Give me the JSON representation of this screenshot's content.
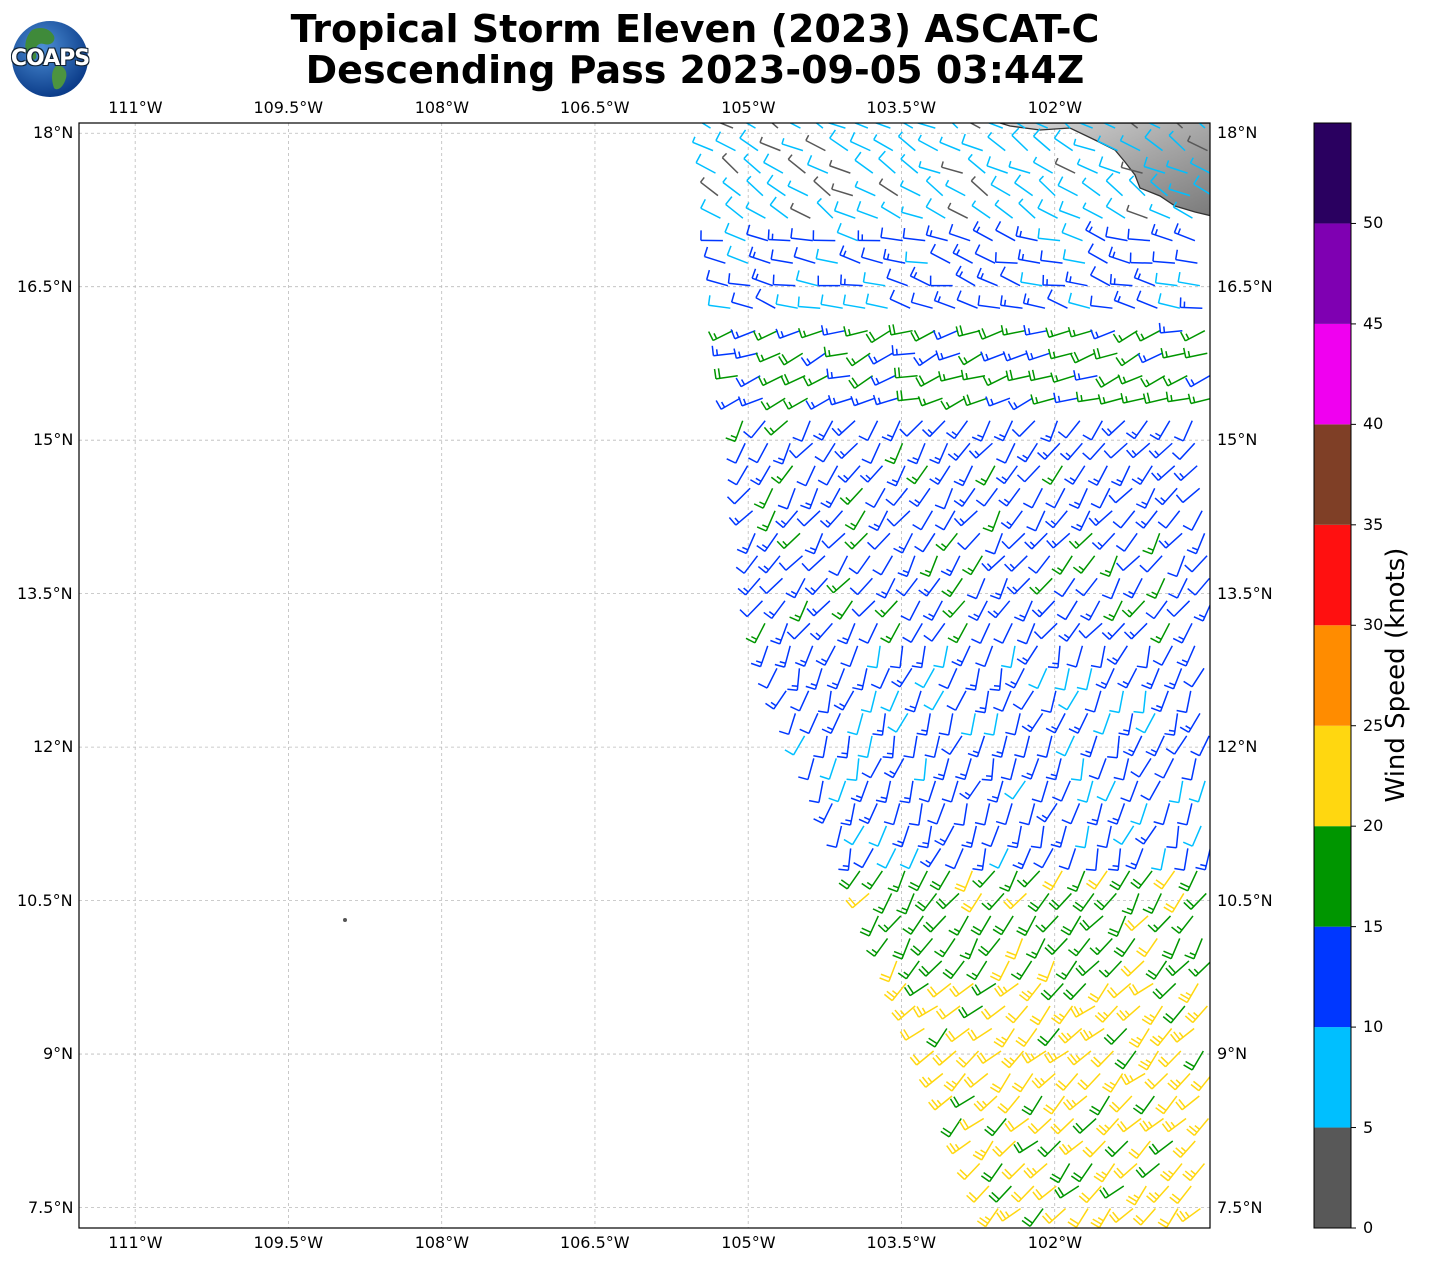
{
  "title": {
    "line1": "Tropical Storm Eleven (2023) ASCAT-C",
    "line2": "Descending Pass 2023-09-05 03:44Z"
  },
  "logo": {
    "text": "COAPS",
    "icon": "globe-icon"
  },
  "map": {
    "lon_range": [
      -111.55,
      -100.48
    ],
    "lat_range": [
      7.3,
      18.1
    ],
    "lon_ticks": [
      {
        "value": -111,
        "label": "111°W"
      },
      {
        "value": -109.5,
        "label": "109.5°W"
      },
      {
        "value": -108,
        "label": "108°W"
      },
      {
        "value": -106.5,
        "label": "106.5°W"
      },
      {
        "value": -105,
        "label": "105°W"
      },
      {
        "value": -103.5,
        "label": "103.5°W"
      },
      {
        "value": -102,
        "label": "102°W"
      }
    ],
    "lat_ticks": [
      {
        "value": 18,
        "label": "18°N"
      },
      {
        "value": 16.5,
        "label": "16.5°N"
      },
      {
        "value": 15,
        "label": "15°N"
      },
      {
        "value": 13.5,
        "label": "13.5°N"
      },
      {
        "value": 12,
        "label": "12°N"
      },
      {
        "value": 10.5,
        "label": "10.5°N"
      },
      {
        "value": 9,
        "label": "9°N"
      },
      {
        "value": 7.5,
        "label": "7.5°N"
      }
    ],
    "gridlines": true,
    "land_color": "#c8c8c8",
    "coast_color": "#333333"
  },
  "colorbar": {
    "label": "Wind Speed (knots)",
    "bins": [
      {
        "from": 0,
        "to": 5,
        "color": "#585858"
      },
      {
        "from": 5,
        "to": 10,
        "color": "#00bfff"
      },
      {
        "from": 10,
        "to": 15,
        "color": "#0037ff"
      },
      {
        "from": 15,
        "to": 20,
        "color": "#009600"
      },
      {
        "from": 20,
        "to": 25,
        "color": "#ffd710"
      },
      {
        "from": 25,
        "to": 30,
        "color": "#ff8c00"
      },
      {
        "from": 30,
        "to": 35,
        "color": "#ff1010"
      },
      {
        "from": 35,
        "to": 40,
        "color": "#7f3f26"
      },
      {
        "from": 40,
        "to": 45,
        "color": "#f000f0"
      },
      {
        "from": 45,
        "to": 50,
        "color": "#7f00b2"
      },
      {
        "from": 50,
        "to": 55,
        "color": "#2a0060"
      }
    ],
    "ticks": [
      {
        "value": 0,
        "label": "0"
      },
      {
        "value": 5,
        "label": "5"
      },
      {
        "value": 10,
        "label": "10"
      },
      {
        "value": 15,
        "label": "15"
      },
      {
        "value": 20,
        "label": "20"
      },
      {
        "value": 25,
        "label": "25"
      },
      {
        "value": 30,
        "label": "30"
      },
      {
        "value": 35,
        "label": "35"
      },
      {
        "value": 40,
        "label": "40"
      },
      {
        "value": 45,
        "label": "45"
      },
      {
        "value": 50,
        "label": "50"
      }
    ]
  },
  "wind_regions": [
    {
      "lat_min": 17.1,
      "lat_max": 18.1,
      "speed": 7,
      "dir": 300
    },
    {
      "lat_min": 16.2,
      "lat_max": 17.1,
      "speed": 12,
      "dir": 285
    },
    {
      "lat_min": 15.2,
      "lat_max": 16.2,
      "speed": 16,
      "dir": 250
    },
    {
      "lat_min": 13.0,
      "lat_max": 15.2,
      "speed": 13,
      "dir": 215
    },
    {
      "lat_min": 11.0,
      "lat_max": 13.0,
      "speed": 12,
      "dir": 200
    },
    {
      "lat_min": 9.8,
      "lat_max": 11.0,
      "speed": 18,
      "dir": 215
    },
    {
      "lat_min": 7.3,
      "lat_max": 9.8,
      "speed": 22,
      "dir": 225
    }
  ]
}
